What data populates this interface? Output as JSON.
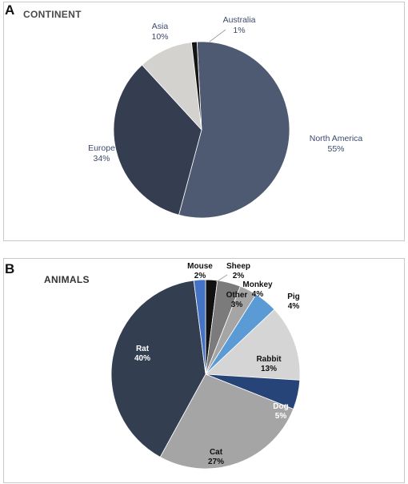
{
  "panels": [
    {
      "letter": "A",
      "title": "CONTINENT"
    },
    {
      "letter": "B",
      "title": "ANIMALS"
    }
  ],
  "chart_data": [
    {
      "type": "pie",
      "title": "CONTINENT",
      "start_angle_deg": -3,
      "slices": [
        {
          "label": "North America",
          "percent": "55%",
          "value": 55,
          "color": "#4d5a72"
        },
        {
          "label": "Europe",
          "percent": "34%",
          "value": 34,
          "color": "#353d51"
        },
        {
          "label": "Asia",
          "percent": "10%",
          "value": 10,
          "color": "#d4d2cf"
        },
        {
          "label": "Australia",
          "percent": "1%",
          "value": 1,
          "color": "#151515"
        }
      ]
    },
    {
      "type": "pie",
      "title": "ANIMALS",
      "start_angle_deg": 0,
      "slices": [
        {
          "label": "Sheep",
          "percent": "2%",
          "value": 2,
          "color": "#111111"
        },
        {
          "label": "Monkey",
          "percent": "4%",
          "value": 4,
          "color": "#7b7b7b"
        },
        {
          "label": "Other",
          "percent": "3%",
          "value": 3,
          "color": "#a5a5a5"
        },
        {
          "label": "Pig",
          "percent": "4%",
          "value": 4,
          "color": "#5b9bd5"
        },
        {
          "label": "Rabbit",
          "percent": "13%",
          "value": 13,
          "color": "#d6d5d5"
        },
        {
          "label": "Dog",
          "percent": "5%",
          "value": 5,
          "color": "#264478"
        },
        {
          "label": "Cat",
          "percent": "27%",
          "value": 27,
          "color": "#a5a5a5"
        },
        {
          "label": "Rat",
          "percent": "40%",
          "value": 40,
          "color": "#333f50"
        },
        {
          "label": "Mouse",
          "percent": "2%",
          "value": 2,
          "color": "#4472c4"
        }
      ]
    }
  ]
}
